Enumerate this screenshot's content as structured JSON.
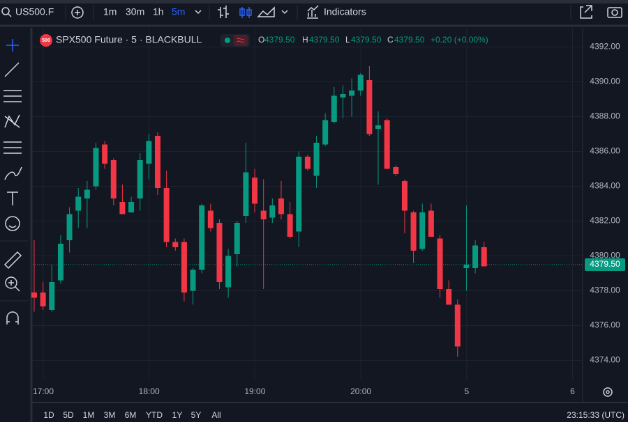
{
  "toolbar": {
    "symbol": "US500.F",
    "intervals": [
      "1m",
      "30m",
      "1h",
      "5m"
    ],
    "indicators": "Indicators"
  },
  "legend": {
    "badge": "500",
    "title": "SPX500 Future · 5 · BLACKBULL",
    "ohlc": [
      {
        "key": "O",
        "value": {
          "value": 4379.5,
          "label": "4379.50"
        }
      },
      {
        "key": "H",
        "value": {
          "value": 4379.5,
          "label": "4379.50"
        }
      },
      {
        "key": "L",
        "value": {
          "value": 4379.5,
          "label": "4379.50"
        }
      },
      {
        "key": "C",
        "value": {
          "value": 4379.5,
          "label": "4379.50"
        }
      }
    ],
    "change": "+0.20 (+0.00%)"
  },
  "chart_data": {
    "type": "candlestick",
    "up_color": "#089981",
    "down_color": "#f23645",
    "open": [
      4377.9,
      4377.9,
      4376.9,
      4378.6,
      4380.9,
      4382.6,
      4383.3,
      4384.0,
      4386.4,
      4385.5,
      4383.1,
      4382.5,
      4383.3,
      4385.3,
      4386.9,
      4383.9,
      4380.8,
      4380.8,
      4378.0,
      4379.2,
      4382.6,
      4381.9,
      4378.2,
      4380.1,
      4382.3,
      4384.5,
      4382.6,
      4382.2,
      4383.3,
      4382.4,
      4381.4,
      4385.7,
      4384.6,
      4386.4,
      4387.7,
      4389.1,
      4389.2,
      4389.5,
      4390.1,
      4387.3,
      4387.8,
      4385.1,
      4384.3,
      4382.5,
      4380.4,
      4382.6,
      4381.0,
      4378.1,
      4377.2,
      4379.3,
      4379.3,
      4380.5
    ],
    "high": [
      4380.9,
      4378.5,
      4379.5,
      4381.2,
      4382.8,
      4383.9,
      4384.3,
      4386.5,
      4386.6,
      4385.6,
      4384.1,
      4383.4,
      4385.9,
      4387.0,
      4387.1,
      4384.9,
      4381.0,
      4381.0,
      4379.3,
      4383.0,
      4383.0,
      4382.1,
      4380.4,
      4382.0,
      4386.5,
      4385.0,
      4384.4,
      4383.3,
      4384.3,
      4383.1,
      4386.0,
      4385.8,
      4386.9,
      4388.2,
      4389.7,
      4389.8,
      4390.2,
      4390.5,
      4390.9,
      4388.3,
      4387.9,
      4385.2,
      4384.4,
      4382.6,
      4383.0,
      4383.0,
      4381.2,
      4378.6,
      4377.5,
      4382.9,
      4380.9,
      4380.8
    ],
    "low": [
      4376.8,
      4376.9,
      4376.8,
      4378.4,
      4380.2,
      4381.6,
      4381.6,
      4383.8,
      4385.0,
      4382.9,
      4382.4,
      4382.5,
      4382.6,
      4384.4,
      4383.5,
      4380.5,
      4380.3,
      4377.4,
      4377.2,
      4379.0,
      4381.4,
      4378.1,
      4377.6,
      4379.4,
      4381.9,
      4382.5,
      4378.1,
      4381.9,
      4382.1,
      4381.0,
      4380.5,
      4384.9,
      4383.9,
      4386.3,
      4387.6,
      4387.9,
      4388.0,
      4389.2,
      4386.9,
      4384.1,
      4385.0,
      4384.6,
      4381.3,
      4379.6,
      4380.3,
      4381.1,
      4377.6,
      4377.2,
      4374.2,
      4378.0,
      4379.0,
      4379.4
    ],
    "close": [
      4377.6,
      4377.1,
      4378.5,
      4380.7,
      4382.4,
      4383.4,
      4383.8,
      4386.2,
      4385.3,
      4383.3,
      4382.4,
      4383.1,
      4385.5,
      4386.6,
      4383.9,
      4380.8,
      4380.5,
      4377.9,
      4379.2,
      4382.9,
      4381.6,
      4378.5,
      4380.0,
      4381.9,
      4384.8,
      4383.0,
      4382.1,
      4382.9,
      4382.4,
      4381.1,
      4385.7,
      4385.0,
      4386.5,
      4387.8,
      4389.2,
      4389.3,
      4389.5,
      4390.4,
      4387.0,
      4387.5,
      4385.0,
      4384.7,
      4382.6,
      4380.3,
      4382.5,
      4381.1,
      4378.1,
      4377.2,
      4374.8,
      4379.5,
      4380.6,
      4379.4
    ],
    "ylim": [
      4372.9,
      4393.1
    ],
    "yticks": [
      {
        "value": 4374,
        "label": "4374.00"
      },
      {
        "value": 4376,
        "label": "4376.00"
      },
      {
        "value": 4378,
        "label": "4378.00"
      },
      {
        "value": 4380,
        "label": "4380.00"
      },
      {
        "value": 4382,
        "label": "4382.00"
      },
      {
        "value": 4384,
        "label": "4384.00"
      },
      {
        "value": 4386,
        "label": "4386.00"
      },
      {
        "value": 4388,
        "label": "4388.00"
      },
      {
        "value": 4390,
        "label": "4390.00"
      },
      {
        "value": 4392,
        "label": "4392.00"
      }
    ],
    "xticks": [
      "17:00",
      "18:00",
      "19:00",
      "20:00",
      "5",
      "6"
    ],
    "last_price": {
      "value": 4379.5,
      "label": "4379.50"
    },
    "grid": true
  },
  "bottom": {
    "ranges": [
      "1D",
      "5D",
      "1M",
      "3M",
      "6M",
      "YTD",
      "1Y",
      "5Y",
      "All"
    ],
    "clock": "23:15:33 (UTC)"
  }
}
